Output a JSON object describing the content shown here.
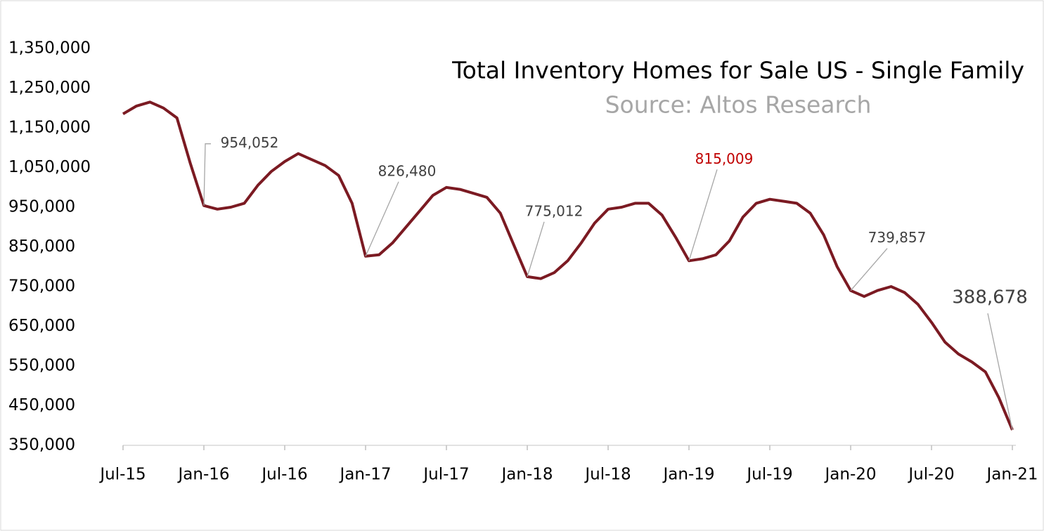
{
  "chart_data": {
    "type": "line",
    "title": "Total Inventory Homes for Sale US - Single Family",
    "subtitle": "Source: Altos Research",
    "categories": [
      "Jul-15",
      null,
      null,
      null,
      null,
      null,
      "Jan-16",
      null,
      null,
      null,
      null,
      null,
      "Jul-16",
      null,
      null,
      null,
      null,
      null,
      "Jan-17",
      null,
      null,
      null,
      null,
      null,
      "Jul-17",
      null,
      null,
      null,
      null,
      null,
      "Jan-18",
      null,
      null,
      null,
      null,
      null,
      "Jul-18",
      null,
      null,
      null,
      null,
      null,
      "Jan-19",
      null,
      null,
      null,
      null,
      null,
      "Jul-19",
      null,
      null,
      null,
      null,
      null,
      "Jan-20",
      null,
      null,
      null,
      null,
      null,
      "Jul-20",
      null,
      null,
      null,
      null,
      null,
      "Jan-21"
    ],
    "series": [
      {
        "name": "Total Inventory",
        "color": "#7b1a22",
        "values": [
          1185000,
          1205000,
          1215000,
          1200000,
          1175000,
          1060000,
          954052,
          945000,
          950000,
          960000,
          1005000,
          1040000,
          1065000,
          1085000,
          1070000,
          1055000,
          1030000,
          960000,
          826480,
          830000,
          860000,
          900000,
          940000,
          980000,
          1000000,
          995000,
          985000,
          975000,
          935000,
          855000,
          775012,
          770000,
          785000,
          815000,
          860000,
          910000,
          945000,
          950000,
          960000,
          960000,
          930000,
          875000,
          815009,
          820000,
          830000,
          865000,
          925000,
          960000,
          970000,
          965000,
          960000,
          935000,
          880000,
          800000,
          739857,
          725000,
          740000,
          750000,
          735000,
          705000,
          660000,
          610000,
          580000,
          560000,
          535000,
          470000,
          388678
        ],
        "value_labels": [
          null,
          null,
          null,
          null,
          null,
          null,
          "954,052",
          null,
          null,
          null,
          null,
          null,
          null,
          null,
          null,
          null,
          null,
          null,
          "826,480",
          null,
          null,
          null,
          null,
          null,
          null,
          null,
          null,
          null,
          null,
          null,
          "775,012",
          null,
          null,
          null,
          null,
          null,
          null,
          null,
          null,
          null,
          null,
          null,
          "815,009",
          null,
          null,
          null,
          null,
          null,
          null,
          null,
          null,
          null,
          null,
          null,
          "739,857",
          null,
          null,
          null,
          null,
          null,
          null,
          null,
          null,
          null,
          null,
          null,
          "388,678"
        ],
        "value_label_colors": [
          null,
          null,
          null,
          null,
          null,
          null,
          "#404040",
          null,
          null,
          null,
          null,
          null,
          null,
          null,
          null,
          null,
          null,
          null,
          "#404040",
          null,
          null,
          null,
          null,
          null,
          null,
          null,
          null,
          null,
          null,
          null,
          "#404040",
          null,
          null,
          null,
          null,
          null,
          null,
          null,
          null,
          null,
          null,
          null,
          "#c00000",
          null,
          null,
          null,
          null,
          null,
          null,
          null,
          null,
          null,
          null,
          null,
          "#404040",
          null,
          null,
          null,
          null,
          null,
          null,
          null,
          null,
          null,
          null,
          null,
          "#404040"
        ]
      }
    ],
    "ylim": [
      350000,
      1350000
    ],
    "yticks": [
      {
        "value": 350000,
        "label": "350,000"
      },
      {
        "value": 450000,
        "label": "450,000"
      },
      {
        "value": 550000,
        "label": "550,000"
      },
      {
        "value": 650000,
        "label": "650,000"
      },
      {
        "value": 750000,
        "label": "750,000"
      },
      {
        "value": 850000,
        "label": "850,000"
      },
      {
        "value": 950000,
        "label": "950,000"
      },
      {
        "value": 1050000,
        "label": "1,050,000"
      },
      {
        "value": 1150000,
        "label": "1,150,000"
      },
      {
        "value": 1250000,
        "label": "1,250,000"
      },
      {
        "value": 1350000,
        "label": "1,350,000"
      }
    ],
    "grid": false
  }
}
